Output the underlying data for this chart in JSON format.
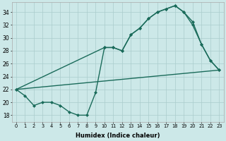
{
  "bg_color": "#cce8e8",
  "grid_color": "#aacccc",
  "line_color": "#1a6b5a",
  "xlabel": "Humidex (Indice chaleur)",
  "xlim": [
    -0.5,
    23.5
  ],
  "ylim": [
    17.0,
    35.5
  ],
  "yticks": [
    18,
    20,
    22,
    24,
    26,
    28,
    30,
    32,
    34
  ],
  "xtick_labels": [
    "0",
    "1",
    "2",
    "3",
    "4",
    "5",
    "6",
    "7",
    "8",
    "9",
    "10",
    "11",
    "12",
    "13",
    "14",
    "15",
    "16",
    "17",
    "18",
    "19",
    "20",
    "21",
    "22",
    "23"
  ],
  "line1_x": [
    0,
    1,
    2,
    3,
    4,
    5,
    6,
    7,
    8,
    9,
    10,
    11,
    12,
    13,
    14,
    15,
    16,
    17,
    18,
    19,
    20,
    21,
    22,
    23
  ],
  "line1_y": [
    22,
    21,
    19.5,
    20,
    20,
    19.5,
    18.5,
    18,
    18,
    21.5,
    28.5,
    28.5,
    28.0,
    30.5,
    31.5,
    33.0,
    34.0,
    34.5,
    35.0,
    34.0,
    32.0,
    29.0,
    26.5,
    25.0
  ],
  "line2_x": [
    0,
    10,
    11,
    12,
    13,
    14,
    15,
    16,
    17,
    18,
    19,
    20,
    21,
    22,
    23
  ],
  "line2_y": [
    22,
    28.5,
    28.5,
    28.0,
    30.5,
    31.5,
    33.0,
    34.0,
    34.5,
    35.0,
    34.0,
    32.5,
    29.0,
    26.5,
    25.0
  ],
  "line3_x": [
    0,
    23
  ],
  "line3_y": [
    22.0,
    25.0
  ],
  "lw": 1.0,
  "ms": 2.5
}
